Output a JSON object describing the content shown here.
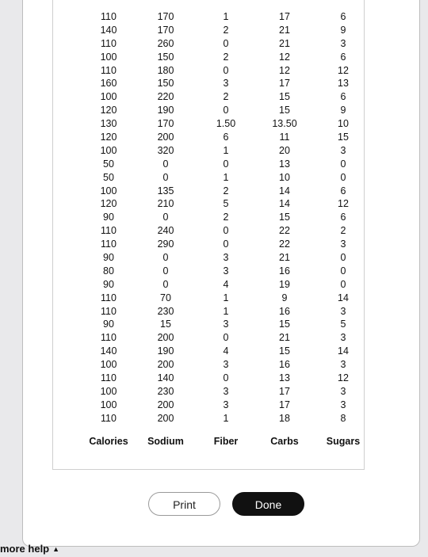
{
  "table": {
    "headers": [
      "Calories",
      "Sodium",
      "Fiber",
      "Carbs",
      "Sugars"
    ],
    "columns": {
      "calories": [
        "110",
        "140",
        "110",
        "100",
        "110",
        "160",
        "100",
        "120",
        "130",
        "120",
        "100",
        "50",
        "50",
        "100",
        "120",
        "90",
        "110",
        "110",
        "90",
        "80",
        "90",
        "110",
        "110",
        "90",
        "110",
        "140",
        "100",
        "110",
        "100",
        "100",
        "110"
      ],
      "sodium": [
        "170",
        "170",
        "260",
        "150",
        "180",
        "150",
        "220",
        "190",
        "170",
        "200",
        "320",
        "0",
        "0",
        "135",
        "210",
        "0",
        "240",
        "290",
        "0",
        "0",
        "0",
        "70",
        "230",
        "15",
        "200",
        "190",
        "200",
        "140",
        "230",
        "200",
        "200"
      ],
      "fiber": [
        "1",
        "2",
        "0",
        "2",
        "0",
        "3",
        "2",
        "0",
        "1.50",
        "6",
        "1",
        "0",
        "1",
        "2",
        "5",
        "2",
        "0",
        "0",
        "3",
        "3",
        "4",
        "1",
        "1",
        "3",
        "0",
        "4",
        "3",
        "0",
        "3",
        "3",
        "1"
      ],
      "carbs": [
        "17",
        "21",
        "21",
        "12",
        "12",
        "17",
        "15",
        "15",
        "13.50",
        "11",
        "20",
        "13",
        "10",
        "14",
        "14",
        "15",
        "22",
        "22",
        "21",
        "16",
        "19",
        "9",
        "16",
        "15",
        "21",
        "15",
        "16",
        "13",
        "17",
        "17",
        "18"
      ],
      "sugars": [
        "6",
        "9",
        "3",
        "6",
        "12",
        "13",
        "6",
        "9",
        "10",
        "15",
        "3",
        "0",
        "0",
        "6",
        "12",
        "6",
        "2",
        "3",
        "0",
        "0",
        "0",
        "14",
        "3",
        "5",
        "3",
        "14",
        "3",
        "12",
        "3",
        "3",
        "8"
      ]
    }
  },
  "buttons": {
    "print": "Print",
    "done": "Done"
  },
  "footer": {
    "more_help": "more help"
  }
}
